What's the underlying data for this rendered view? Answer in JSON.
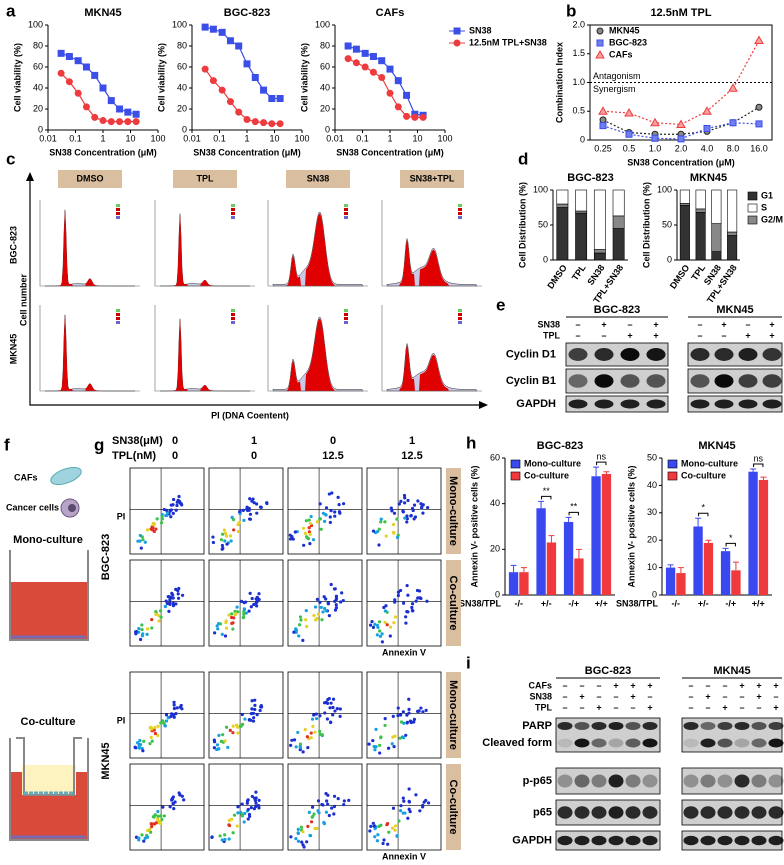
{
  "panel_labels": [
    "a",
    "b",
    "c",
    "d",
    "e",
    "f",
    "g",
    "h",
    "i"
  ],
  "chart_data": [
    {
      "type": "line",
      "title": "MKN45",
      "x_label": "SN38 Concentration (μM)",
      "y_label": "Cell viability (%)",
      "log_x": true,
      "x": [
        0.03,
        0.06,
        0.125,
        0.25,
        0.5,
        1,
        2,
        4,
        8,
        16
      ],
      "series": [
        {
          "color": "#3b4ee8",
          "marker": "square",
          "values": [
            73,
            70,
            66,
            60,
            52,
            40,
            28,
            20,
            17,
            15
          ]
        },
        {
          "color": "#ee3b3e",
          "marker": "circle",
          "values": [
            54,
            46,
            35,
            22,
            12,
            9,
            8,
            8,
            8,
            8
          ]
        }
      ],
      "xlim": [
        0.01,
        100
      ],
      "xticks": [
        0.01,
        0.1,
        1,
        10,
        100
      ],
      "ylim": [
        0,
        100
      ],
      "yticks": [
        0,
        20,
        40,
        60,
        80,
        100
      ]
    },
    {
      "type": "line",
      "title": "BGC-823",
      "x_label": "SN38 Concentration (μM)",
      "y_label": "Cell viability (%)",
      "log_x": true,
      "x": [
        0.03,
        0.06,
        0.125,
        0.25,
        0.5,
        1,
        2,
        4,
        8,
        16
      ],
      "series": [
        {
          "color": "#3b4ee8",
          "marker": "square",
          "values": [
            98,
            96,
            93,
            85,
            80,
            63,
            50,
            38,
            30,
            30
          ]
        },
        {
          "color": "#ee3b3e",
          "marker": "circle",
          "values": [
            58,
            47,
            38,
            27,
            17,
            10,
            8,
            7,
            6,
            6
          ]
        }
      ],
      "xlim": [
        0.01,
        100
      ],
      "xticks": [
        0.01,
        0.1,
        1,
        10,
        100
      ],
      "ylim": [
        0,
        100
      ],
      "yticks": [
        0,
        20,
        40,
        60,
        80,
        100
      ]
    },
    {
      "type": "line",
      "title": "CAFs",
      "x_label": "SN38 Concentration (μM)",
      "y_label": "Cell viability (%)",
      "log_x": true,
      "x": [
        0.03,
        0.06,
        0.125,
        0.25,
        0.5,
        1,
        2,
        4,
        8,
        16
      ],
      "series": [
        {
          "name": "SN38",
          "color": "#3b4ee8",
          "marker": "square",
          "values": [
            80,
            77,
            73,
            70,
            66,
            58,
            47,
            33,
            15,
            14
          ]
        },
        {
          "name": "12.5nM TPL+SN38",
          "color": "#ee3b3e",
          "marker": "circle",
          "values": [
            68,
            64,
            60,
            55,
            50,
            35,
            22,
            13,
            12,
            12
          ]
        }
      ],
      "xlim": [
        0.01,
        100
      ],
      "xticks": [
        0.01,
        0.1,
        1,
        10,
        100
      ],
      "ylim": [
        0,
        100
      ],
      "yticks": [
        0,
        20,
        40,
        60,
        80,
        100
      ],
      "legend": "right"
    },
    {
      "type": "line",
      "title": "12.5nM TPL",
      "x_label": "SN38 Concentration (μM)",
      "y_label": "Combination Index",
      "categories": [
        "0.25",
        "0.5",
        "1.0",
        "2.0",
        "4.0",
        "8.0",
        "16.0"
      ],
      "series": [
        {
          "name": "MKN45",
          "color": "#222222",
          "fill": "#8a8a8a",
          "marker": "circle",
          "line_style": "dotted",
          "values": [
            0.35,
            0.13,
            0.1,
            0.1,
            0.15,
            0.3,
            0.57
          ]
        },
        {
          "name": "BGC-823",
          "color": "#3b4ee8",
          "fill": "#6f7ef0",
          "marker": "square",
          "line_style": "dotted",
          "values": [
            0.25,
            0.1,
            0.03,
            0.02,
            0.2,
            0.3,
            0.28
          ]
        },
        {
          "name": "CAFs",
          "color": "#ee3b3e",
          "fill": "#f6a0a0",
          "marker": "triangle",
          "line_style": "dotted",
          "values": [
            0.5,
            0.47,
            0.3,
            0.27,
            0.5,
            0.9,
            1.73
          ]
        }
      ],
      "ylim": [
        0,
        2
      ],
      "yticks": [
        0,
        0.5,
        {
          "value": 1,
          "label": "1.0"
        },
        1.5,
        {
          "value": 2,
          "label": "2.0"
        }
      ],
      "threshold": 1,
      "annotations": [
        "Antagonism",
        "Synergism"
      ],
      "legend": "upper left"
    },
    {
      "type": "stacked_bar",
      "title": "BGC-823",
      "y_label": "Cell Distribution (%)",
      "categories": [
        "DMSO",
        "TPL",
        "SN38",
        "TPL+SN38"
      ],
      "series": [
        {
          "color": "#333333",
          "values": [
            75,
            67,
            10,
            45
          ]
        },
        {
          "color": "#ffffff",
          "values": [
            20,
            30,
            85,
            37
          ]
        },
        {
          "color": "#888888",
          "values": [
            5,
            3,
            5,
            18
          ]
        }
      ],
      "ylim": [
        0,
        100
      ],
      "yticks": [
        0,
        50,
        100
      ]
    },
    {
      "type": "stacked_bar",
      "title": "MKN45",
      "y_label": "Cell Distribution (%)",
      "categories": [
        "DMSO",
        "TPL",
        "SN38",
        "TPL+SN38"
      ],
      "series": [
        {
          "name": "G1",
          "color": "#333333",
          "values": [
            78,
            68,
            12,
            35
          ]
        },
        {
          "name": "S",
          "color": "#ffffff",
          "values": [
            19,
            27,
            48,
            60
          ]
        },
        {
          "name": "G2/M",
          "color": "#888888",
          "values": [
            3,
            5,
            40,
            5
          ]
        }
      ],
      "ylim": [
        0,
        100
      ],
      "yticks": [
        0,
        50,
        100
      ],
      "legend": "right"
    },
    {
      "type": "grouped_bar",
      "title": "BGC-823",
      "y_label": "Annexin V- positive cells (%)",
      "category_label": "SN38/TPL",
      "categories": [
        "-/-",
        "+/-",
        "-/+",
        "+/+"
      ],
      "series": [
        {
          "name": "Mono-culture",
          "color": "#3a48f0",
          "values": [
            10,
            38,
            32,
            52
          ],
          "errors": [
            3,
            3,
            2,
            4
          ]
        },
        {
          "name": "Co-culture",
          "color": "#f0393d",
          "values": [
            10,
            23,
            16,
            53
          ],
          "errors": [
            2,
            3,
            4,
            1
          ]
        }
      ],
      "significance": [
        null,
        "**",
        "**",
        "ns"
      ],
      "ylim": [
        0,
        60
      ],
      "yticks": [
        0,
        20,
        40,
        60
      ],
      "legend": "upper left"
    },
    {
      "type": "grouped_bar",
      "title": "MKN45",
      "y_label": "Annexin V- positive cells (%)",
      "category_label": "SN38/TPL",
      "categories": [
        "-/-",
        "+/-",
        "-/+",
        "+/+"
      ],
      "series": [
        {
          "name": "Mono-culture",
          "color": "#3a48f0",
          "values": [
            10,
            25,
            16,
            45
          ],
          "errors": [
            1,
            3,
            1,
            1
          ]
        },
        {
          "name": "Co-culture",
          "color": "#f0393d",
          "values": [
            8,
            19,
            9,
            42
          ],
          "errors": [
            2,
            1,
            3,
            1
          ]
        }
      ],
      "significance": [
        null,
        "*",
        "*",
        "ns"
      ],
      "ylim": [
        0,
        50
      ],
      "yticks": [
        0,
        10,
        20,
        30,
        40,
        50
      ],
      "legend": "upper left"
    }
  ],
  "cell_cycle_flow": {
    "columns": [
      "DMSO",
      "TPL",
      "SN38",
      "SN38+TPL"
    ],
    "rows": [
      "BGC-823",
      "MKN45"
    ],
    "y_label": "Cell number",
    "x_label": "PI (DNA Coentent)"
  },
  "western_blot_cyclin": {
    "groups": [
      "BGC-823",
      "MKN45"
    ],
    "treatments": [
      {
        "name": "SN38",
        "signs": [
          "–",
          "+",
          "–",
          "+"
        ]
      },
      {
        "name": "TPL",
        "signs": [
          "–",
          "–",
          "+",
          "+"
        ]
      }
    ],
    "proteins": [
      "Cyclin D1",
      "Cyclin B1",
      "GAPDH"
    ]
  },
  "coculture_schematic": {
    "cells": [
      "CAFs",
      "Cancer cells"
    ],
    "conditions": [
      "Mono-culture",
      "Co-culture"
    ]
  },
  "apoptosis_flow": {
    "treatments": [
      {
        "name": "SN38(μM)",
        "levels": [
          "0",
          "1",
          "0",
          "1"
        ]
      },
      {
        "name": "TPL(nM)",
        "levels": [
          "0",
          "0",
          "12.5",
          "12.5"
        ]
      }
    ],
    "cell_lines": [
      "BGC-823",
      "MKN45"
    ],
    "conditions": [
      "Mono-culture",
      "Co-culture"
    ],
    "y_label": "PI",
    "x_label": "Annexin V"
  },
  "western_blot_parp": {
    "groups": [
      "BGC-823",
      "MKN45"
    ],
    "treatments": [
      {
        "name": "CAFs",
        "signs": [
          "–",
          "–",
          "–",
          "+",
          "+",
          "+"
        ]
      },
      {
        "name": "SN38",
        "signs": [
          "–",
          "+",
          "–",
          "–",
          "+",
          "–"
        ]
      },
      {
        "name": "TPL",
        "signs": [
          "–",
          "–",
          "+",
          "–",
          "–",
          "+"
        ]
      }
    ],
    "proteins": [
      "PARP",
      "Cleaved form",
      "p-p65",
      "p65",
      "GAPDH"
    ]
  }
}
